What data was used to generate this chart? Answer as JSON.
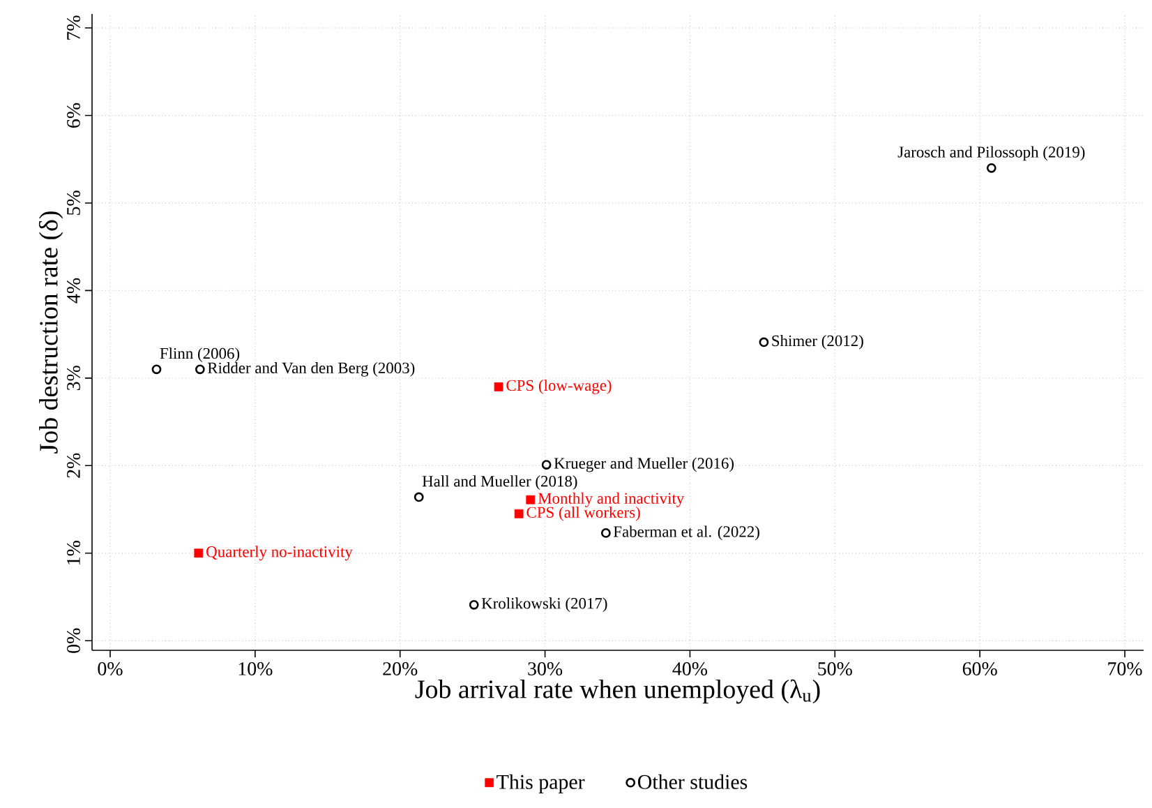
{
  "chart_data": {
    "type": "scatter",
    "xlabel": "Job arrival rate when unemployed (λ$_{u}$)",
    "ylabel": "Job destruction rate (δ)",
    "xlim": [
      -1.25,
      71.3
    ],
    "ylim": [
      -0.11,
      7.16
    ],
    "xticks": [
      {
        "value": 0,
        "label": "0%"
      },
      {
        "value": 10,
        "label": "10%"
      },
      {
        "value": 20,
        "label": "20%"
      },
      {
        "value": 30,
        "label": "30%"
      },
      {
        "value": 40,
        "label": "40%"
      },
      {
        "value": 50,
        "label": "50%"
      },
      {
        "value": 60,
        "label": "60%"
      },
      {
        "value": 70,
        "label": "70%"
      }
    ],
    "yticks": [
      {
        "value": 0,
        "label": "0%"
      },
      {
        "value": 1,
        "label": "1%"
      },
      {
        "value": 2,
        "label": "2%"
      },
      {
        "value": 3,
        "label": "3%"
      },
      {
        "value": 4,
        "label": "4%"
      },
      {
        "value": 5,
        "label": "5%"
      },
      {
        "value": 6,
        "label": "6%"
      },
      {
        "value": 7,
        "label": "7%"
      }
    ],
    "grid": true,
    "legend": "bottom",
    "series": [
      {
        "name": "This paper",
        "color": "#ff0000",
        "marker": "square",
        "x": [
          26.8,
          29.0,
          28.2,
          6.1
        ],
        "values": [
          2.9,
          1.61,
          1.45,
          1.0
        ]
      },
      {
        "name": "Other studies",
        "color": "#000000",
        "marker": "circle",
        "x": [
          3.2,
          6.2,
          60.8,
          45.1,
          30.1,
          21.3,
          34.2,
          25.1
        ],
        "values": [
          3.1,
          3.1,
          5.4,
          3.41,
          2.01,
          1.64,
          1.23,
          0.41
        ]
      }
    ],
    "annotations": [
      {
        "text": "Flinn (2006)",
        "x": 3.2,
        "y": 3.1
      },
      {
        "text": "Ridder and Van den Berg (2003)",
        "x": 6.2,
        "y": 3.1
      },
      {
        "text": "Jarosch and Pilossoph (2019)",
        "x": 60.8,
        "y": 5.4
      },
      {
        "text": "Shimer (2012)",
        "x": 45.1,
        "y": 3.41
      },
      {
        "text": "Krueger and Mueller (2016)",
        "x": 30.1,
        "y": 2.01
      },
      {
        "text": "Hall and Mueller (2018)",
        "x": 21.3,
        "y": 1.64
      },
      {
        "text": "Faberman et al. (2022)",
        "x": 34.2,
        "y": 1.23
      },
      {
        "text": "Krolikowski (2017)",
        "x": 25.1,
        "y": 0.41
      },
      {
        "text": "CPS (low-wage)",
        "x": 26.8,
        "y": 2.9
      },
      {
        "text": "Monthly and inactivity",
        "x": 29.0,
        "y": 1.61
      },
      {
        "text": "CPS (all workers)",
        "x": 28.2,
        "y": 1.45
      },
      {
        "text": "Quarterly no-inactivity",
        "x": 6.1,
        "y": 1.0
      }
    ]
  }
}
